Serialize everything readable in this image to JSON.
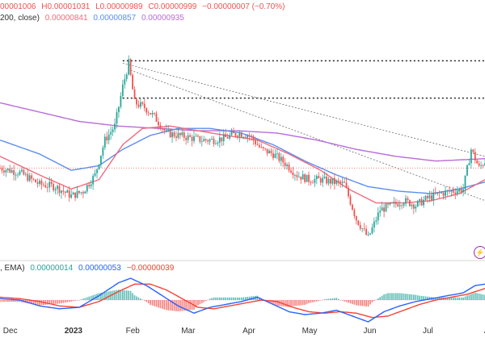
{
  "header": {
    "ohlc_open": "00001006",
    "ohlc_high": "H0.00001031",
    "ohlc_low": "L0.00000989",
    "ohlc_close": "C0.00000999",
    "ohlc_change": "−0.00000007 (−0.70%)",
    "ma_label": "200, close)",
    "ma_val1": "0.00000841",
    "ma_val2": "0.00000857",
    "ma_val3": "0.00000935",
    "macd_label": ", EMA)",
    "macd_val1": "0.00000014",
    "macd_val2": "0.00000053",
    "macd_val3": "−0.00000039"
  },
  "colors": {
    "up": "#26a69a",
    "down": "#ef5350",
    "ma_fast": "#f06b7c",
    "ma_mid": "#5b8def",
    "ma_slow": "#b86bd8",
    "macd_line": "#2962ff",
    "signal_line": "#f44336"
  },
  "icons": {
    "flash": "flash-icon"
  },
  "chart_data": {
    "type": "candlestick",
    "x_ticks": [
      {
        "label": "Dec",
        "date": "2022-12-01",
        "bold": false
      },
      {
        "label": "2023",
        "date": "2023-01-01",
        "bold": true
      },
      {
        "label": "Feb",
        "date": "2023-02-01",
        "bold": false
      },
      {
        "label": "Mar",
        "date": "2023-03-01",
        "bold": false
      },
      {
        "label": "Apr",
        "date": "2023-04-01",
        "bold": false
      },
      {
        "label": "May",
        "date": "2023-05-01",
        "bold": false
      },
      {
        "label": "Jun",
        "date": "2023-06-01",
        "bold": false
      },
      {
        "label": "Jul",
        "date": "2023-07-01",
        "bold": false
      },
      {
        "label": "Aug",
        "date": "2023-08-01",
        "bold": false
      }
    ],
    "price_keypoints": [
      [
        0,
        1.0
      ],
      [
        10,
        0.98
      ],
      [
        20,
        0.93
      ],
      [
        28,
        0.92
      ],
      [
        36,
        0.88
      ],
      [
        42,
        0.9
      ],
      [
        48,
        0.97
      ],
      [
        53,
        1.12
      ],
      [
        58,
        1.18
      ],
      [
        62,
        1.35
      ],
      [
        65,
        1.45
      ],
      [
        68,
        1.28
      ],
      [
        73,
        1.26
      ],
      [
        78,
        1.22
      ],
      [
        84,
        1.15
      ],
      [
        90,
        1.14
      ],
      [
        96,
        1.13
      ],
      [
        102,
        1.12
      ],
      [
        108,
        1.12
      ],
      [
        114,
        1.13
      ],
      [
        120,
        1.15
      ],
      [
        126,
        1.14
      ],
      [
        132,
        1.08
      ],
      [
        138,
        1.06
      ],
      [
        144,
        1.02
      ],
      [
        150,
        0.97
      ],
      [
        156,
        0.95
      ],
      [
        162,
        0.95
      ],
      [
        168,
        0.94
      ],
      [
        174,
        0.93
      ],
      [
        180,
        0.78
      ],
      [
        186,
        0.7
      ],
      [
        192,
        0.82
      ],
      [
        198,
        0.84
      ],
      [
        204,
        0.86
      ],
      [
        210,
        0.84
      ],
      [
        216,
        0.87
      ],
      [
        222,
        0.89
      ],
      [
        228,
        0.9
      ],
      [
        234,
        0.91
      ],
      [
        238,
        1.08
      ],
      [
        242,
        1.0
      ],
      [
        245,
        1.03
      ]
    ],
    "ma_fast_keypoints": [
      [
        0,
        1.05
      ],
      [
        20,
        0.97
      ],
      [
        36,
        0.91
      ],
      [
        50,
        0.95
      ],
      [
        62,
        1.1
      ],
      [
        72,
        1.17
      ],
      [
        86,
        1.18
      ],
      [
        100,
        1.16
      ],
      [
        114,
        1.14
      ],
      [
        130,
        1.12
      ],
      [
        146,
        1.06
      ],
      [
        162,
        0.99
      ],
      [
        176,
        0.91
      ],
      [
        190,
        0.85
      ],
      [
        204,
        0.85
      ],
      [
        218,
        0.86
      ],
      [
        232,
        0.89
      ],
      [
        245,
        0.95
      ]
    ],
    "ma_mid_keypoints": [
      [
        0,
        1.12
      ],
      [
        20,
        1.06
      ],
      [
        36,
        0.99
      ],
      [
        50,
        1.01
      ],
      [
        62,
        1.08
      ],
      [
        76,
        1.14
      ],
      [
        90,
        1.17
      ],
      [
        106,
        1.17
      ],
      [
        122,
        1.15
      ],
      [
        138,
        1.1
      ],
      [
        154,
        1.03
      ],
      [
        170,
        0.97
      ],
      [
        186,
        0.92
      ],
      [
        202,
        0.9
      ],
      [
        218,
        0.89
      ],
      [
        232,
        0.91
      ],
      [
        245,
        0.94
      ]
    ],
    "ma_slow_keypoints": [
      [
        0,
        1.28
      ],
      [
        20,
        1.24
      ],
      [
        40,
        1.2
      ],
      [
        60,
        1.18
      ],
      [
        80,
        1.17
      ],
      [
        100,
        1.16
      ],
      [
        120,
        1.16
      ],
      [
        140,
        1.15
      ],
      [
        160,
        1.12
      ],
      [
        180,
        1.08
      ],
      [
        200,
        1.05
      ],
      [
        220,
        1.03
      ],
      [
        245,
        1.04
      ]
    ],
    "macd_keypoints": [
      [
        0,
        0.1
      ],
      [
        10,
        0.0
      ],
      [
        20,
        -0.4
      ],
      [
        30,
        -0.6
      ],
      [
        40,
        -0.5
      ],
      [
        50,
        0.3
      ],
      [
        60,
        1.2
      ],
      [
        66,
        1.5
      ],
      [
        74,
        1.0
      ],
      [
        82,
        0.3
      ],
      [
        90,
        -0.4
      ],
      [
        98,
        -0.9
      ],
      [
        106,
        -0.5
      ],
      [
        114,
        -0.3
      ],
      [
        122,
        -0.1
      ],
      [
        130,
        0.2
      ],
      [
        138,
        -0.3
      ],
      [
        146,
        -0.8
      ],
      [
        154,
        -1.0
      ],
      [
        162,
        -0.9
      ],
      [
        170,
        -0.7
      ],
      [
        178,
        -1.1
      ],
      [
        186,
        -1.5
      ],
      [
        194,
        -0.8
      ],
      [
        202,
        -0.4
      ],
      [
        210,
        -0.1
      ],
      [
        218,
        0.1
      ],
      [
        226,
        0.3
      ],
      [
        234,
        0.5
      ],
      [
        240,
        1.0
      ],
      [
        245,
        1.1
      ]
    ],
    "signal_keypoints": [
      [
        0,
        0.2
      ],
      [
        10,
        0.1
      ],
      [
        20,
        -0.1
      ],
      [
        30,
        -0.4
      ],
      [
        40,
        -0.5
      ],
      [
        50,
        -0.1
      ],
      [
        60,
        0.6
      ],
      [
        68,
        1.1
      ],
      [
        76,
        1.1
      ],
      [
        84,
        0.7
      ],
      [
        92,
        0.1
      ],
      [
        100,
        -0.5
      ],
      [
        108,
        -0.6
      ],
      [
        116,
        -0.4
      ],
      [
        124,
        -0.2
      ],
      [
        132,
        0.0
      ],
      [
        140,
        -0.1
      ],
      [
        148,
        -0.5
      ],
      [
        156,
        -0.8
      ],
      [
        164,
        -0.9
      ],
      [
        172,
        -0.8
      ],
      [
        180,
        -0.9
      ],
      [
        188,
        -1.2
      ],
      [
        196,
        -1.1
      ],
      [
        204,
        -0.7
      ],
      [
        212,
        -0.3
      ],
      [
        220,
        0.0
      ],
      [
        228,
        0.2
      ],
      [
        236,
        0.4
      ],
      [
        245,
        0.8
      ]
    ],
    "dotted_levels": [
      1.46,
      1.3
    ],
    "trendlines": [
      [
        [
          62,
          1.45
        ],
        [
          245,
          1.05
        ]
      ],
      [
        [
          66,
          1.42
        ],
        [
          245,
          0.86
        ]
      ]
    ]
  }
}
